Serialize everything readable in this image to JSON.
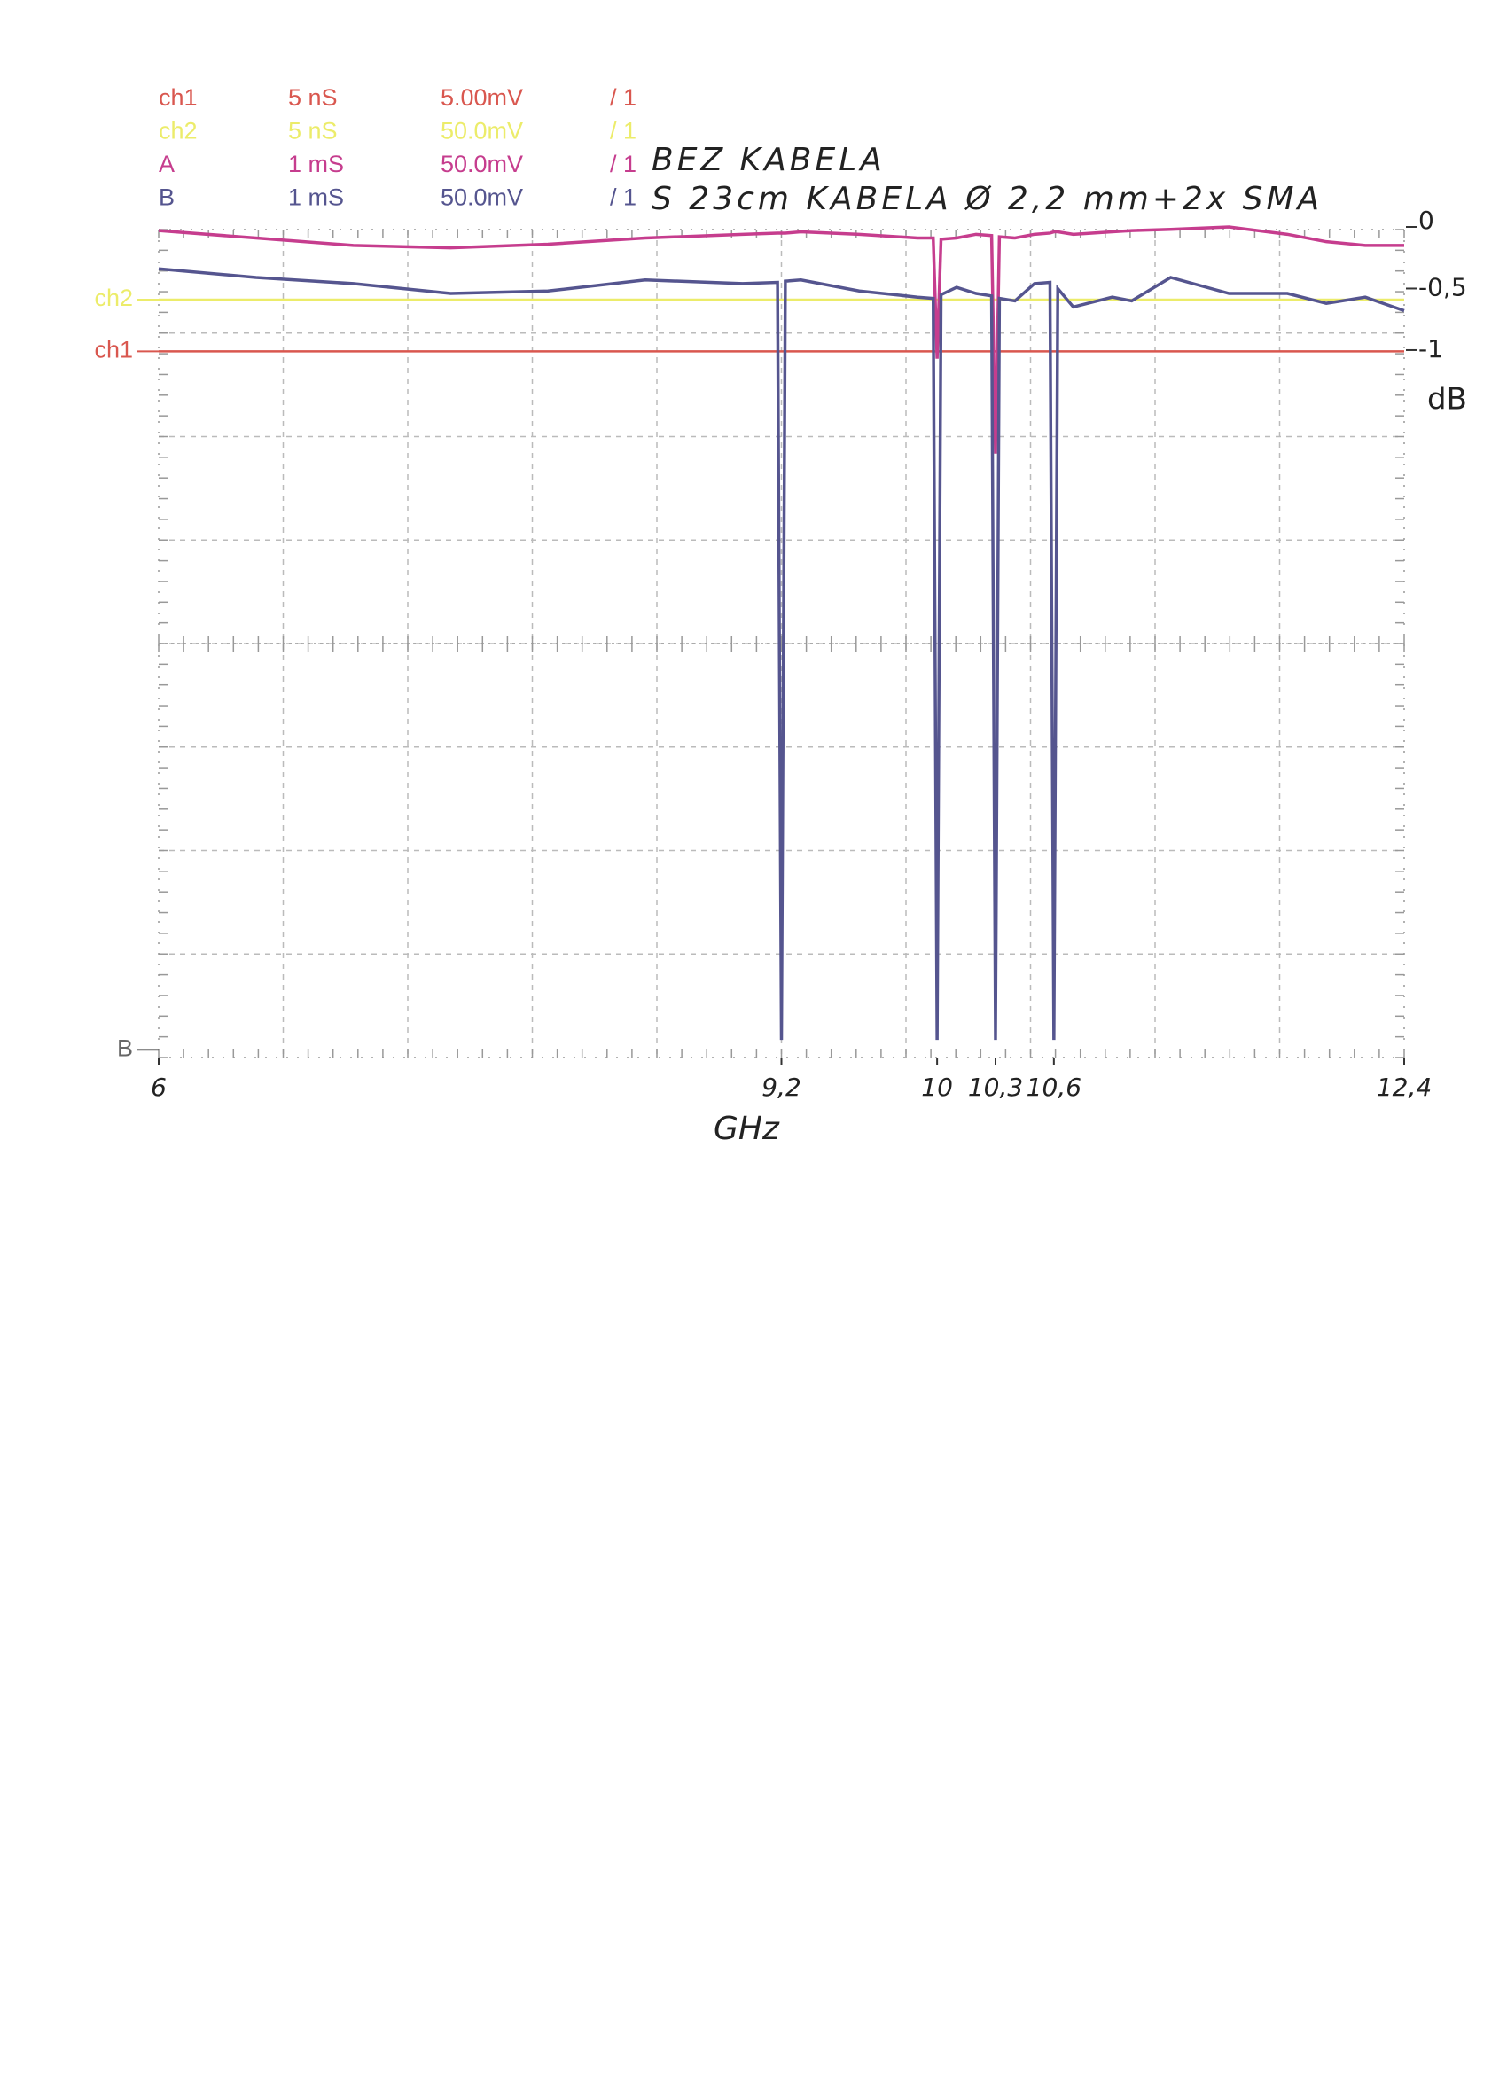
{
  "chart_data": {
    "type": "line",
    "channels": [
      {
        "name": "ch1",
        "timebase": "5 nS",
        "scale": "5.00mV",
        "probe": "/ 1",
        "color": "#d9574f"
      },
      {
        "name": "ch2",
        "timebase": "5 nS",
        "scale": "50.0mV",
        "probe": "/ 1",
        "color": "#ecec6a"
      },
      {
        "name": "A",
        "timebase": "1 mS",
        "scale": "50.0mV",
        "probe": "/ 1",
        "color": "#c63d8e"
      },
      {
        "name": "B",
        "timebase": "1 mS",
        "scale": "50.0mV",
        "probe": "/ 1",
        "color": "#55558f"
      }
    ],
    "markers": [
      {
        "label": "ch2",
        "value": -0.59,
        "color": "#ecec6a",
        "line": true
      },
      {
        "label": "ch1",
        "value": -1.01,
        "color": "#d9574f",
        "line": true
      },
      {
        "label": "B",
        "value": -6.68,
        "color": "#666666",
        "line": false
      }
    ],
    "x": [
      6,
      6.5,
      7,
      7.5,
      8,
      8.5,
      9,
      9.18,
      9.2,
      9.22,
      9.3,
      9.6,
      9.9,
      9.98,
      10,
      10.02,
      10.1,
      10.2,
      10.28,
      10.3,
      10.32,
      10.4,
      10.5,
      10.58,
      10.6,
      10.62,
      10.7,
      10.9,
      11,
      11.2,
      11.5,
      11.8,
      12,
      12.2,
      12.4
    ],
    "series": [
      {
        "name": "BEZ KABELA",
        "color": "#c63d8e",
        "values": [
          -0.03,
          -0.09,
          -0.15,
          -0.17,
          -0.14,
          -0.09,
          -0.06,
          -0.05,
          -0.05,
          -0.05,
          -0.04,
          -0.06,
          -0.09,
          -0.09,
          -1.07,
          -0.1,
          -0.09,
          -0.06,
          -0.07,
          -1.84,
          -0.08,
          -0.09,
          -0.06,
          -0.05,
          -0.04,
          -0.04,
          -0.06,
          -0.04,
          -0.03,
          -0.02,
          0,
          -0.06,
          -0.12,
          -0.15,
          -0.15
        ]
      },
      {
        "name": "S 23cm KABELA Ø 2,2 mm+2x SMA",
        "color": "#55558f",
        "values": [
          -0.34,
          -0.41,
          -0.46,
          -0.54,
          -0.52,
          -0.43,
          -0.46,
          -0.45,
          -6.6,
          -0.44,
          -0.43,
          -0.52,
          -0.57,
          -0.58,
          -6.6,
          -0.55,
          -0.49,
          -0.54,
          -0.56,
          -6.6,
          -0.58,
          -0.6,
          -0.46,
          -0.45,
          -6.6,
          -0.5,
          -0.65,
          -0.57,
          -0.6,
          -0.41,
          -0.54,
          -0.54,
          -0.62,
          -0.57,
          -0.68
        ]
      }
    ],
    "xlabel": "GHz",
    "ylabel": "dB",
    "xlim": [
      6,
      12.4
    ],
    "xticks": [
      6,
      {
        "value": 9.2,
        "label": "9,2"
      },
      10,
      {
        "value": 10.3,
        "label": "10,3"
      },
      {
        "value": 10.6,
        "label": "10,6"
      },
      {
        "value": 12.4,
        "label": "12,4"
      }
    ],
    "ylim": [
      -6.75,
      0
    ],
    "yticks": [
      0,
      {
        "value": -0.5,
        "label": "-0,5"
      },
      -1
    ]
  }
}
